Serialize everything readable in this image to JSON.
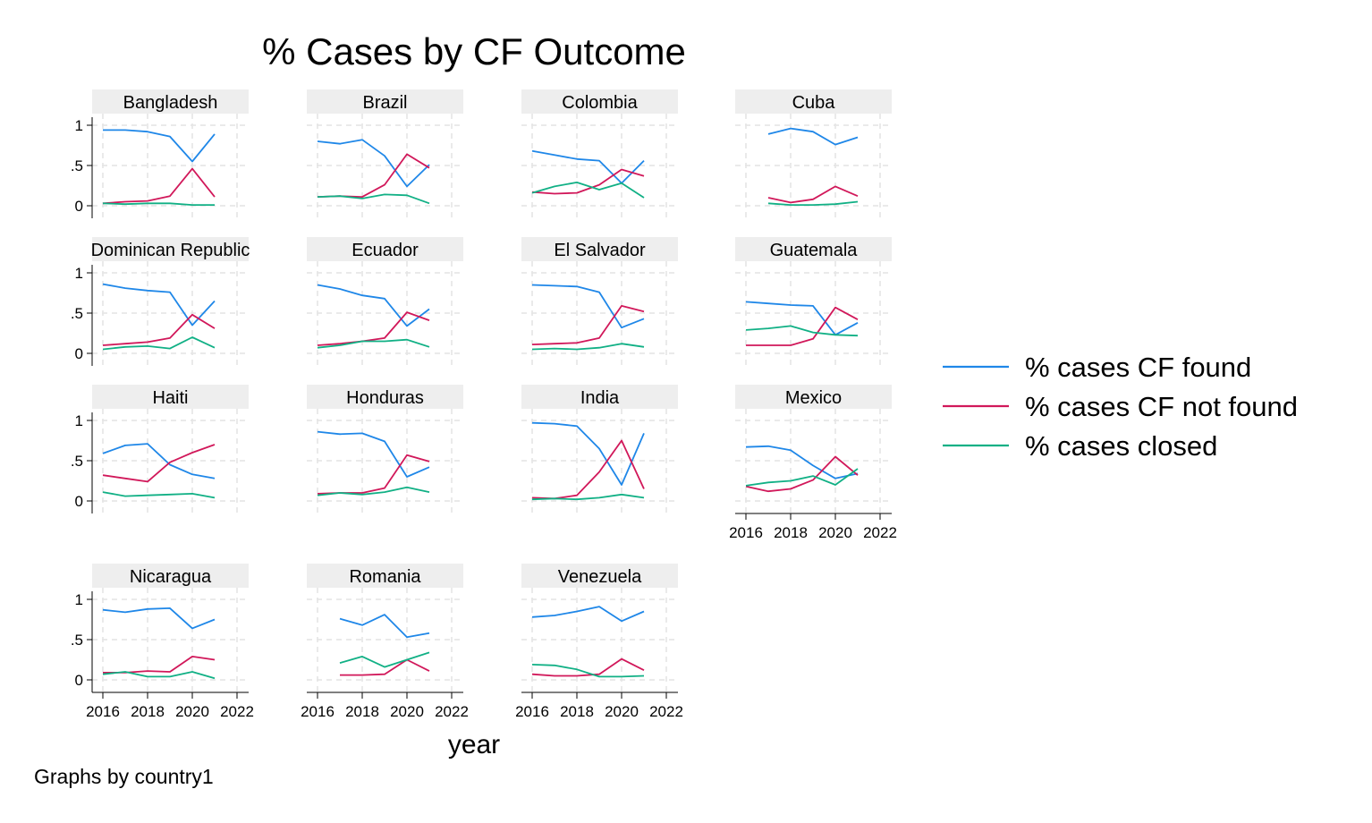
{
  "chart_data": {
    "type": "line",
    "title": "% Cases by CF Outcome",
    "xlabel": "year",
    "note": "Graphs by country1",
    "x_ticks": [
      2016,
      2018,
      2020,
      2022
    ],
    "y_ticks": [
      0,
      0.5,
      1
    ],
    "y_tick_labels": [
      "0",
      ".5",
      "1"
    ],
    "xlim": [
      2016,
      2022
    ],
    "ylim": [
      0,
      1
    ],
    "grid": true,
    "legend_position": "right",
    "series_meta": [
      {
        "name": "% cases CF found",
        "color": "#1f87e8"
      },
      {
        "name": "% cases CF not found",
        "color": "#d1185a"
      },
      {
        "name": "% cases closed",
        "color": "#11b085"
      }
    ],
    "panels": [
      {
        "label": "Bangladesh",
        "x": [
          2016,
          2017,
          2018,
          2019,
          2020,
          2021
        ],
        "series": [
          [
            0.94,
            0.94,
            0.92,
            0.86,
            0.55,
            0.89
          ],
          [
            0.03,
            0.05,
            0.06,
            0.12,
            0.46,
            0.11
          ],
          [
            0.03,
            0.02,
            0.03,
            0.03,
            0.01,
            0.01
          ]
        ]
      },
      {
        "label": "Brazil",
        "x": [
          2016,
          2017,
          2018,
          2019,
          2020,
          2021
        ],
        "series": [
          [
            0.8,
            0.77,
            0.82,
            0.62,
            0.24,
            0.51
          ],
          [
            0.11,
            0.12,
            0.11,
            0.26,
            0.64,
            0.47
          ],
          [
            0.11,
            0.12,
            0.09,
            0.14,
            0.13,
            0.03
          ]
        ]
      },
      {
        "label": "Colombia",
        "x": [
          2016,
          2017,
          2018,
          2019,
          2020,
          2021
        ],
        "series": [
          [
            0.68,
            0.63,
            0.58,
            0.56,
            0.28,
            0.56
          ],
          [
            0.17,
            0.15,
            0.16,
            0.26,
            0.45,
            0.37
          ],
          [
            0.16,
            0.24,
            0.29,
            0.2,
            0.28,
            0.1
          ]
        ]
      },
      {
        "label": "Cuba",
        "x": [
          2017,
          2018,
          2019,
          2020,
          2021
        ],
        "series": [
          [
            0.89,
            0.96,
            0.92,
            0.76,
            0.85
          ],
          [
            0.1,
            0.04,
            0.08,
            0.24,
            0.12
          ],
          [
            0.03,
            0.01,
            0.01,
            0.02,
            0.05
          ]
        ]
      },
      {
        "label": "Dominican Republic",
        "x": [
          2016,
          2017,
          2018,
          2019,
          2020,
          2021
        ],
        "series": [
          [
            0.86,
            0.81,
            0.78,
            0.76,
            0.35,
            0.65
          ],
          [
            0.1,
            0.12,
            0.14,
            0.19,
            0.48,
            0.31
          ],
          [
            0.05,
            0.08,
            0.09,
            0.06,
            0.2,
            0.07
          ]
        ]
      },
      {
        "label": "Ecuador",
        "x": [
          2016,
          2017,
          2018,
          2019,
          2020,
          2021
        ],
        "series": [
          [
            0.85,
            0.8,
            0.72,
            0.68,
            0.34,
            0.55
          ],
          [
            0.1,
            0.12,
            0.15,
            0.19,
            0.51,
            0.41
          ],
          [
            0.07,
            0.1,
            0.15,
            0.15,
            0.17,
            0.08
          ]
        ]
      },
      {
        "label": "El Salvador",
        "x": [
          2016,
          2017,
          2018,
          2019,
          2020,
          2021
        ],
        "series": [
          [
            0.85,
            0.84,
            0.83,
            0.76,
            0.32,
            0.43
          ],
          [
            0.11,
            0.12,
            0.13,
            0.19,
            0.59,
            0.52
          ],
          [
            0.05,
            0.06,
            0.05,
            0.07,
            0.12,
            0.08
          ]
        ]
      },
      {
        "label": "Guatemala",
        "x": [
          2016,
          2017,
          2018,
          2019,
          2020,
          2021
        ],
        "series": [
          [
            0.64,
            0.62,
            0.6,
            0.59,
            0.23,
            0.38
          ],
          [
            0.1,
            0.1,
            0.1,
            0.18,
            0.57,
            0.42
          ],
          [
            0.29,
            0.31,
            0.34,
            0.26,
            0.23,
            0.22
          ]
        ]
      },
      {
        "label": "Haiti",
        "x": [
          2016,
          2017,
          2018,
          2019,
          2020,
          2021
        ],
        "series": [
          [
            0.59,
            0.69,
            0.71,
            0.45,
            0.33,
            0.28
          ],
          [
            0.32,
            0.28,
            0.24,
            0.48,
            0.6,
            0.7
          ],
          [
            0.11,
            0.06,
            0.07,
            0.08,
            0.09,
            0.04
          ]
        ]
      },
      {
        "label": "Honduras",
        "x": [
          2016,
          2017,
          2018,
          2019,
          2020,
          2021
        ],
        "series": [
          [
            0.86,
            0.83,
            0.84,
            0.74,
            0.3,
            0.42
          ],
          [
            0.09,
            0.1,
            0.1,
            0.16,
            0.57,
            0.49
          ],
          [
            0.07,
            0.1,
            0.08,
            0.11,
            0.17,
            0.11
          ]
        ]
      },
      {
        "label": "India",
        "x": [
          2016,
          2017,
          2018,
          2019,
          2020,
          2021
        ],
        "series": [
          [
            0.97,
            0.96,
            0.93,
            0.65,
            0.2,
            0.84
          ],
          [
            0.04,
            0.03,
            0.07,
            0.36,
            0.75,
            0.15
          ],
          [
            0.02,
            0.03,
            0.02,
            0.04,
            0.08,
            0.04
          ]
        ]
      },
      {
        "label": "Mexico",
        "x": [
          2016,
          2017,
          2018,
          2019,
          2020,
          2021
        ],
        "series": [
          [
            0.67,
            0.68,
            0.63,
            0.44,
            0.28,
            0.34
          ],
          [
            0.18,
            0.12,
            0.15,
            0.26,
            0.55,
            0.32
          ],
          [
            0.19,
            0.23,
            0.25,
            0.31,
            0.2,
            0.4
          ]
        ]
      },
      {
        "label": "Nicaragua",
        "x": [
          2016,
          2017,
          2018,
          2019,
          2020,
          2021
        ],
        "series": [
          [
            0.87,
            0.84,
            0.88,
            0.89,
            0.64,
            0.75
          ],
          [
            0.09,
            0.09,
            0.11,
            0.1,
            0.29,
            0.25
          ],
          [
            0.07,
            0.1,
            0.04,
            0.04,
            0.1,
            0.02
          ]
        ]
      },
      {
        "label": "Romania",
        "x": [
          2017,
          2018,
          2019,
          2020,
          2021
        ],
        "series": [
          [
            0.76,
            0.68,
            0.81,
            0.53,
            0.58
          ],
          [
            0.06,
            0.06,
            0.07,
            0.25,
            0.11
          ],
          [
            0.21,
            0.29,
            0.16,
            0.25,
            0.34
          ]
        ]
      },
      {
        "label": "Venezuela",
        "x": [
          2016,
          2017,
          2018,
          2019,
          2020,
          2021
        ],
        "series": [
          [
            0.78,
            0.8,
            0.85,
            0.91,
            0.73,
            0.85
          ],
          [
            0.07,
            0.05,
            0.05,
            0.07,
            0.26,
            0.12
          ],
          [
            0.19,
            0.18,
            0.13,
            0.04,
            0.04,
            0.05
          ]
        ]
      }
    ]
  }
}
